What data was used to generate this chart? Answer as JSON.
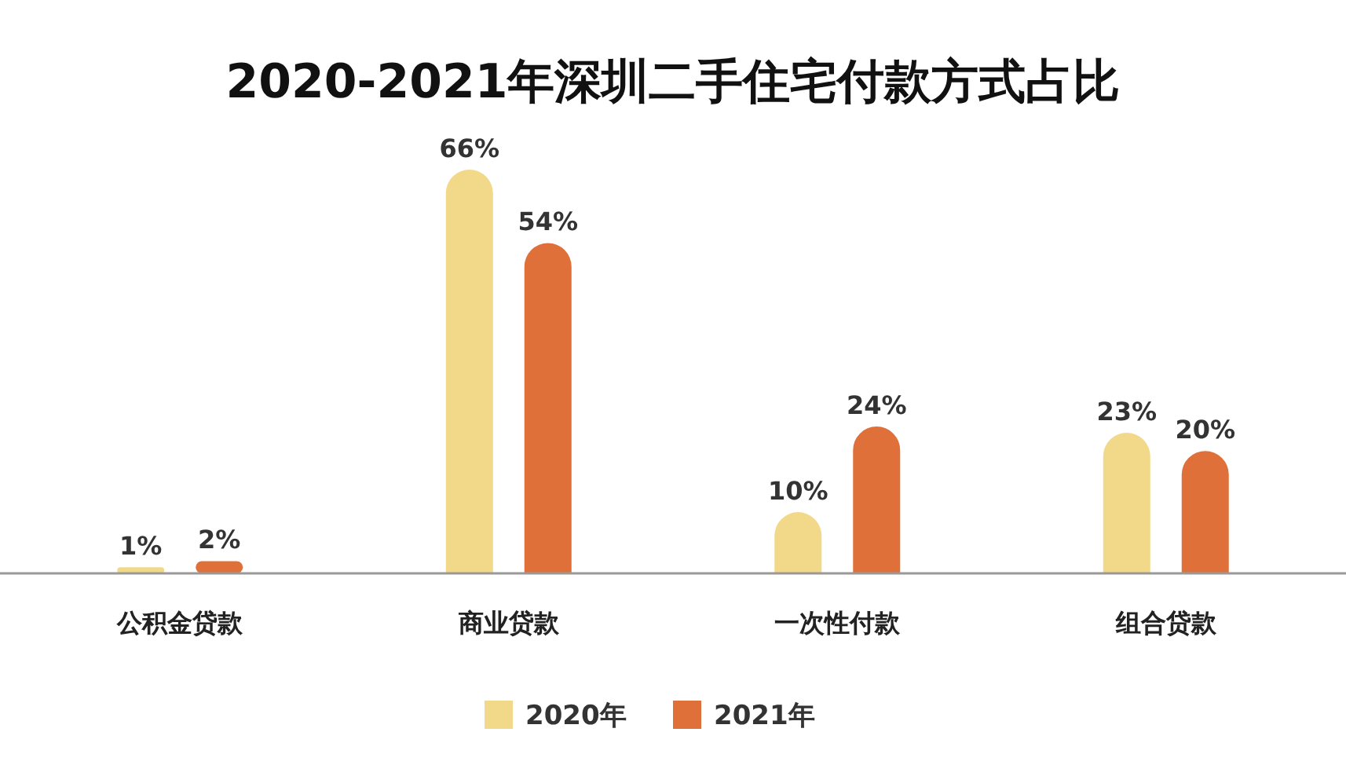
{
  "chart_data": {
    "type": "bar",
    "title": "2020-2021年深圳二手住宅付款方式占比",
    "categories": [
      "公积金贷款",
      "商业贷款",
      "一次性付款",
      "组合贷款"
    ],
    "series": [
      {
        "name": "2020年",
        "color": "#f2d98a",
        "values": [
          1,
          66,
          10,
          23
        ],
        "value_labels": [
          "1%",
          "66%",
          "10%",
          "23%"
        ]
      },
      {
        "name": "2021年",
        "color": "#e0703a",
        "values": [
          2,
          54,
          24,
          20
        ],
        "value_labels": [
          "2%",
          "54%",
          "24%",
          "20%"
        ]
      }
    ],
    "legend": "bottom"
  }
}
